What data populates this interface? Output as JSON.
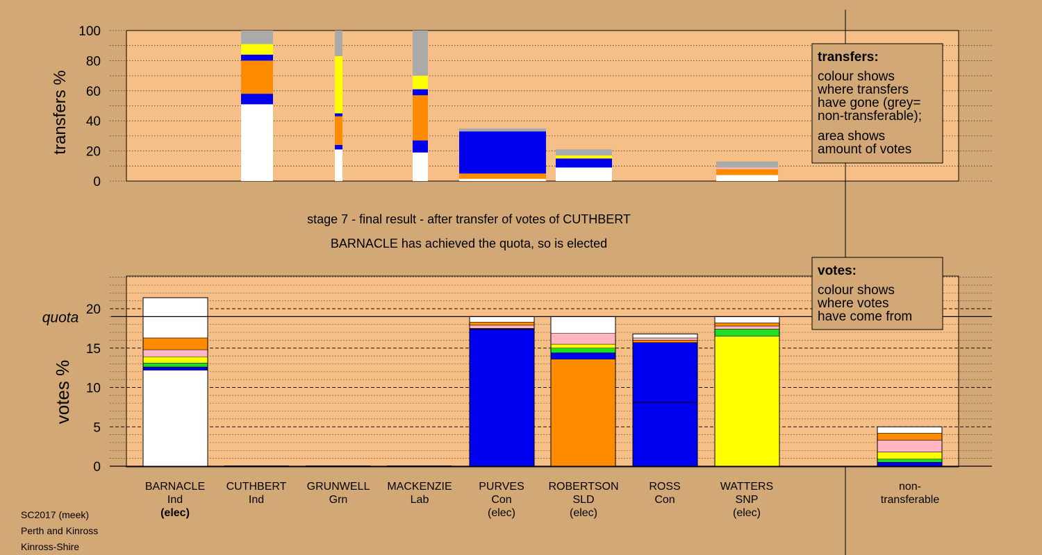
{
  "header": {
    "stage_line": "stage 7 - final result - after transfer of votes of CUTHBERT",
    "result_line": "BARNACLE has achieved the quota, so is elected"
  },
  "footer": {
    "line1": "SC2017 (meek)",
    "line2": "Perth and Kinross",
    "line3": "Kinross-Shire"
  },
  "colors": {
    "background": "#d3a877",
    "plot_background": "#f7bf88",
    "white": "#ffffff",
    "blue": "#0000ee",
    "orange": "#ff8c00",
    "yellow": "#ffff00",
    "grey": "#aaaaaa",
    "pink": "#ffb6c1",
    "green": "#22dd22",
    "navy": "#000088"
  },
  "legend_transfers": {
    "title": "transfers:",
    "lines": [
      "colour shows",
      "where transfers",
      "have gone (grey=",
      "non-transferable);"
    ],
    "lines2": [
      "area shows",
      "amount of votes"
    ]
  },
  "legend_votes": {
    "title": "votes:",
    "lines": [
      "colour shows",
      "where votes",
      "have come from"
    ]
  },
  "chart_data": [
    {
      "type": "bar",
      "ylabel": "transfers %",
      "ylim": [
        0,
        100
      ],
      "yticks": [
        "0",
        "20",
        "40",
        "60",
        "80",
        "100"
      ],
      "grid": true,
      "legend_placement": "top-right",
      "columns": [
        {
          "candidate": "CUTHBERT",
          "segments": [
            {
              "color": "white",
              "from": 0,
              "to": 51
            },
            {
              "color": "blue",
              "from": 51,
              "to": 58
            },
            {
              "color": "orange",
              "from": 58,
              "to": 80
            },
            {
              "color": "blue",
              "from": 80,
              "to": 84
            },
            {
              "color": "yellow",
              "from": 84,
              "to": 91
            },
            {
              "color": "grey",
              "from": 91,
              "to": 100
            }
          ]
        },
        {
          "candidate": "GRUNWELL",
          "segments": [
            {
              "color": "white",
              "from": 0,
              "to": 21
            },
            {
              "color": "blue",
              "from": 21,
              "to": 24
            },
            {
              "color": "orange",
              "from": 24,
              "to": 43
            },
            {
              "color": "blue",
              "from": 43,
              "to": 45
            },
            {
              "color": "yellow",
              "from": 45,
              "to": 83
            },
            {
              "color": "grey",
              "from": 83,
              "to": 100
            }
          ]
        },
        {
          "candidate": "MACKENZIE",
          "segments": [
            {
              "color": "white",
              "from": 0,
              "to": 19
            },
            {
              "color": "blue",
              "from": 19,
              "to": 27
            },
            {
              "color": "orange",
              "from": 27,
              "to": 57
            },
            {
              "color": "blue",
              "from": 57,
              "to": 61
            },
            {
              "color": "yellow",
              "from": 61,
              "to": 70
            },
            {
              "color": "grey",
              "from": 70,
              "to": 100
            }
          ]
        },
        {
          "candidate": "PURVES",
          "segments": [
            {
              "color": "white",
              "from": 0,
              "to": 1.5
            },
            {
              "color": "orange",
              "from": 1.5,
              "to": 5
            },
            {
              "color": "blue",
              "from": 5,
              "to": 33
            },
            {
              "color": "grey",
              "from": 33,
              "to": 35
            }
          ]
        },
        {
          "candidate": "ROBERTSON",
          "segments": [
            {
              "color": "white",
              "from": 0,
              "to": 9
            },
            {
              "color": "blue",
              "from": 9,
              "to": 15
            },
            {
              "color": "yellow",
              "from": 15,
              "to": 17
            },
            {
              "color": "grey",
              "from": 17,
              "to": 21
            }
          ]
        },
        {
          "candidate": "WATTERS",
          "segments": [
            {
              "color": "white",
              "from": 0,
              "to": 4
            },
            {
              "color": "orange",
              "from": 4,
              "to": 8
            },
            {
              "color": "pink",
              "from": 8,
              "to": 9
            },
            {
              "color": "grey",
              "from": 9,
              "to": 13
            }
          ]
        }
      ]
    },
    {
      "type": "bar",
      "ylabel": "votes %",
      "ylim": [
        0,
        24
      ],
      "yticks": [
        "0",
        "5",
        "10",
        "15",
        "20"
      ],
      "quota": 19.0,
      "quota_label": "quota",
      "grid": true,
      "legend_placement": "top-right",
      "categories": [
        {
          "name": "BARNACLE",
          "party": "Ind",
          "status": "(elec)",
          "status_bold": true
        },
        {
          "name": "CUTHBERT",
          "party": "Ind",
          "status": ""
        },
        {
          "name": "GRUNWELL",
          "party": "Grn",
          "status": ""
        },
        {
          "name": "MACKENZIE",
          "party": "Lab",
          "status": ""
        },
        {
          "name": "PURVES",
          "party": "Con",
          "status": "(elec)"
        },
        {
          "name": "ROBERTSON",
          "party": "SLD",
          "status": "(elec)"
        },
        {
          "name": "ROSS",
          "party": "Con",
          "status": ""
        },
        {
          "name": "WATTERS",
          "party": "SNP",
          "status": "(elec)"
        },
        {
          "name": "non-",
          "party": "transferable",
          "status": ""
        }
      ],
      "columns": [
        {
          "candidate": "BARNACLE",
          "total": 21.4,
          "segments": [
            {
              "color": "white",
              "from": 0,
              "to": 12.2
            },
            {
              "color": "blue",
              "from": 12.2,
              "to": 12.6
            },
            {
              "color": "green",
              "from": 12.6,
              "to": 13.1
            },
            {
              "color": "yellow",
              "from": 13.1,
              "to": 13.9
            },
            {
              "color": "pink",
              "from": 13.9,
              "to": 14.8
            },
            {
              "color": "orange",
              "from": 14.8,
              "to": 16.3
            },
            {
              "color": "white",
              "from": 16.3,
              "to": 21.4
            }
          ]
        },
        {
          "candidate": "CUTHBERT",
          "total": 0,
          "segments": []
        },
        {
          "candidate": "GRUNWELL",
          "total": 0,
          "segments": []
        },
        {
          "candidate": "MACKENZIE",
          "total": 0,
          "segments": []
        },
        {
          "candidate": "PURVES",
          "total": 19.0,
          "segments": [
            {
              "color": "blue",
              "from": 0,
              "to": 17.3
            },
            {
              "color": "navy",
              "from": 17.3,
              "to": 17.5
            },
            {
              "color": "pink",
              "from": 17.5,
              "to": 17.9
            },
            {
              "color": "orange",
              "from": 17.9,
              "to": 18.3
            },
            {
              "color": "white",
              "from": 18.3,
              "to": 19.0
            }
          ]
        },
        {
          "candidate": "ROBERTSON",
          "total": 19.0,
          "segments": [
            {
              "color": "orange",
              "from": 0,
              "to": 13.6
            },
            {
              "color": "blue",
              "from": 13.6,
              "to": 14.4
            },
            {
              "color": "green",
              "from": 14.4,
              "to": 15.0
            },
            {
              "color": "yellow",
              "from": 15.0,
              "to": 15.5
            },
            {
              "color": "pink",
              "from": 15.5,
              "to": 16.9
            },
            {
              "color": "white",
              "from": 16.9,
              "to": 19.0
            }
          ]
        },
        {
          "candidate": "ROSS",
          "total": 16.8,
          "segments": [
            {
              "color": "blue",
              "from": 0,
              "to": 15.7
            },
            {
              "color": "orange",
              "from": 15.7,
              "to": 16.0
            },
            {
              "color": "pink",
              "from": 16.0,
              "to": 16.3
            },
            {
              "color": "white",
              "from": 16.3,
              "to": 16.8
            }
          ],
          "inner_line": 8.1
        },
        {
          "candidate": "WATTERS",
          "total": 19.0,
          "segments": [
            {
              "color": "yellow",
              "from": 0,
              "to": 16.5
            },
            {
              "color": "green",
              "from": 16.5,
              "to": 17.4
            },
            {
              "color": "pink",
              "from": 17.4,
              "to": 17.8
            },
            {
              "color": "orange",
              "from": 17.8,
              "to": 18.2
            },
            {
              "color": "white",
              "from": 18.2,
              "to": 19.0
            }
          ]
        },
        {
          "candidate": "non-transferable",
          "total": 5.0,
          "segments": [
            {
              "color": "blue",
              "from": 0,
              "to": 0.5
            },
            {
              "color": "green",
              "from": 0.5,
              "to": 0.9
            },
            {
              "color": "yellow",
              "from": 0.9,
              "to": 1.8
            },
            {
              "color": "pink",
              "from": 1.8,
              "to": 3.3
            },
            {
              "color": "orange",
              "from": 3.3,
              "to": 4.2
            },
            {
              "color": "white",
              "from": 4.2,
              "to": 5.0
            }
          ]
        }
      ]
    }
  ]
}
